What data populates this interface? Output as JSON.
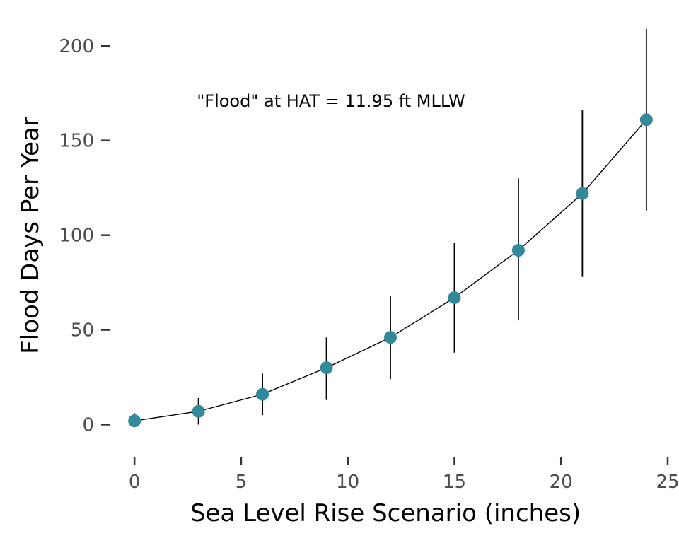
{
  "chart_data": {
    "type": "scatter",
    "title": "",
    "xlabel": "Sea Level Rise Scenario (inches)",
    "ylabel": "Flood Days Per Year",
    "annotation": "\"Flood\" at HAT = 11.95 ft MLLW",
    "xlim": [
      -1,
      25
    ],
    "ylim": [
      -14,
      210
    ],
    "x_ticks": [
      0,
      5,
      10,
      15,
      20,
      25
    ],
    "x_tick_labels": [
      "0",
      "5",
      "10",
      "15",
      "20",
      "25"
    ],
    "y_ticks": [
      0,
      50,
      100,
      150,
      200
    ],
    "y_tick_labels": [
      "0",
      "50",
      "100",
      "150",
      "200"
    ],
    "grid": false,
    "connect_points": true,
    "error_bars": true,
    "point_color": "#31899a",
    "line_color": "#000000",
    "series": [
      {
        "x": [
          0,
          3,
          6,
          9,
          12,
          15,
          18,
          21,
          24
        ],
        "values": [
          2,
          7,
          16,
          30,
          46,
          67,
          92,
          122,
          161
        ],
        "lower": [
          0,
          0,
          5,
          13,
          24,
          38,
          55,
          78,
          113
        ],
        "upper": [
          6,
          14,
          27,
          46,
          68,
          96,
          130,
          166,
          209
        ]
      }
    ]
  }
}
